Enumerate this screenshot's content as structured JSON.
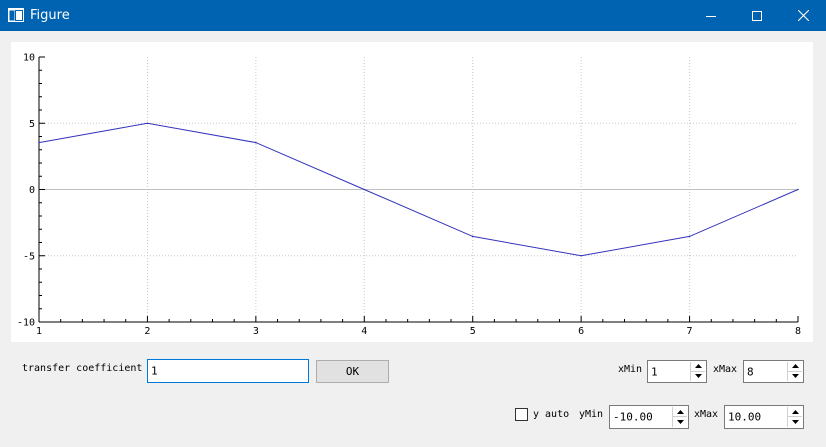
{
  "window": {
    "title": "Figure",
    "accent_color": "#0063b1",
    "icons": [
      "app-icon",
      "minimize-icon",
      "maximize-icon",
      "close-icon"
    ]
  },
  "chart_data": {
    "type": "line",
    "x": [
      1,
      2,
      3,
      4,
      5,
      6,
      7,
      8
    ],
    "series": [
      {
        "values": [
          3.54,
          5.0,
          3.54,
          0.0,
          -3.54,
          -5.0,
          -3.54,
          0.0
        ],
        "color": "#3333bb"
      }
    ],
    "xlim": [
      1,
      8
    ],
    "ylim": [
      -10,
      10
    ],
    "xticks": [
      "1",
      "2",
      "3",
      "4",
      "5",
      "6",
      "7",
      "8"
    ],
    "yticks": [
      "10",
      "5",
      "0",
      "-5",
      "-10"
    ],
    "grid": true,
    "zero_line": true
  },
  "controls": {
    "transfer_label": "transfer coefficient",
    "transfer_value": "1",
    "ok_label": "OK",
    "xmin_label": "xMin",
    "xmin_value": "1",
    "xmax_label": "xMax",
    "xmax_value": "8",
    "yauto_label": "y auto",
    "yauto_checked": false,
    "ymin_label": "yMin",
    "ymin_value": "-10.00",
    "xmax2_label": "xMax",
    "xmax2_value": "10.00"
  }
}
